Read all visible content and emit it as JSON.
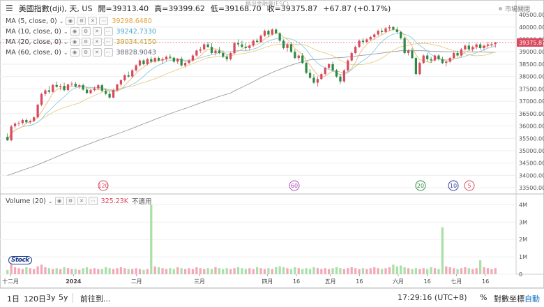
{
  "header": {
    "symbol": "美國指數(dji), 天, US",
    "open": "開=39313.40",
    "high": "高=39399.62",
    "low": "低=39168.70",
    "close": "收=39375.87",
    "change": "+67.87 (+0.17%)",
    "market_status": "市場關閉",
    "watermark": "稿出金融量(ESC)"
  },
  "indicators": [
    {
      "label": "MA (5, close, 0)",
      "value": "39298.6480",
      "color": "#e8a33a"
    },
    {
      "label": "MA (10, close, 0)",
      "value": "39242.7330",
      "color": "#4aa7c8"
    },
    {
      "label": "MA (20, close, 0)",
      "value": "39034.4150",
      "color": "#d8b84a"
    },
    {
      "label": "MA (60, close, 0)",
      "value": "38828.9043",
      "color": "#8f8f99"
    }
  ],
  "volume_legend": {
    "label": "Volume (20)",
    "value": "325.23K",
    "note": "不適用"
  },
  "price_axis": {
    "ticks": [
      "40500.00",
      "40000.00",
      "39500.00",
      "39000.00",
      "38500.00",
      "38000.00",
      "37500.00",
      "37000.00",
      "36500.00",
      "36000.00",
      "35500.00",
      "35000.00",
      "34500.00",
      "34000.00",
      "33500.00"
    ],
    "current": "39375.87"
  },
  "volume_axis": {
    "ticks": [
      "4M",
      "3M",
      "2M",
      "1M",
      "0"
    ]
  },
  "time_axis": {
    "labels": [
      "十二月",
      "2024",
      "二月",
      "三月",
      "四月",
      "16",
      "五月",
      "16",
      "六月",
      "16",
      "七月",
      "16"
    ]
  },
  "markers": [
    "120",
    "60",
    "20",
    "10",
    "5"
  ],
  "bottom_bar": {
    "ranges": [
      "1日",
      "120日",
      "3y",
      "5y"
    ],
    "goto": "前往到...",
    "time": "17:29:16 (UTC+8)",
    "percent": "%",
    "log": "對數坐標",
    "auto": "自動"
  },
  "colors": {
    "up": "#d94a5f",
    "down": "#2e8b45",
    "vol_up": "#f2a8b8",
    "vol_down": "#a8e0a8",
    "current_tag": "#d94a5f"
  },
  "chart_data": {
    "type": "candlestick",
    "ylim": [
      33250,
      40700
    ],
    "vol_ylim": [
      0,
      4300000
    ],
    "ma_values_last": {
      "ma5": 39298.648,
      "ma10": 39242.733,
      "ma20": 39034.415,
      "ma60": 38828.9043
    },
    "bars": [
      [
        35560,
        35700,
        35400,
        35420
      ],
      [
        35420,
        36050,
        35380,
        35980
      ],
      [
        35990,
        36150,
        35900,
        36100
      ],
      [
        36100,
        36200,
        36000,
        36120
      ],
      [
        36120,
        36300,
        36050,
        36240
      ],
      [
        36240,
        36300,
        36100,
        36150
      ],
      [
        36150,
        36260,
        36080,
        36200
      ],
      [
        36200,
        36400,
        36150,
        36350
      ],
      [
        36350,
        36900,
        36300,
        36860
      ],
      [
        36860,
        37350,
        36800,
        37290
      ],
      [
        37290,
        37500,
        37200,
        37440
      ],
      [
        37440,
        37620,
        37300,
        37380
      ],
      [
        37380,
        37700,
        37350,
        37660
      ],
      [
        37660,
        37800,
        37550,
        37580
      ],
      [
        37580,
        37700,
        37450,
        37620
      ],
      [
        37620,
        37750,
        37400,
        37450
      ],
      [
        37450,
        37700,
        37400,
        37680
      ],
      [
        37680,
        37800,
        37600,
        37710
      ],
      [
        37710,
        37780,
        37560,
        37590
      ],
      [
        37590,
        37700,
        37500,
        37650
      ],
      [
        37650,
        37720,
        37430,
        37470
      ],
      [
        37470,
        37560,
        37300,
        37330
      ],
      [
        37330,
        37500,
        37280,
        37450
      ],
      [
        37450,
        37600,
        37400,
        37520
      ],
      [
        37520,
        37700,
        37450,
        37650
      ],
      [
        37650,
        37710,
        37380,
        37420
      ],
      [
        37420,
        37500,
        37250,
        37300
      ],
      [
        37300,
        37400,
        37100,
        37150
      ],
      [
        37150,
        37500,
        37120,
        37450
      ],
      [
        37450,
        37700,
        37400,
        37680
      ],
      [
        37680,
        37900,
        37600,
        37850
      ],
      [
        37850,
        38100,
        37800,
        38050
      ],
      [
        38050,
        38200,
        37950,
        38000
      ],
      [
        38000,
        38300,
        37950,
        38250
      ],
      [
        38250,
        38500,
        38200,
        38450
      ],
      [
        38450,
        38700,
        38400,
        38650
      ],
      [
        38650,
        38700,
        38450,
        38500
      ],
      [
        38500,
        38750,
        38450,
        38700
      ],
      [
        38700,
        38800,
        38550,
        38600
      ],
      [
        38600,
        38800,
        38550,
        38750
      ],
      [
        38750,
        38800,
        38600,
        38650
      ],
      [
        38650,
        38780,
        38500,
        38700
      ],
      [
        38700,
        38850,
        38620,
        38800
      ],
      [
        38800,
        38900,
        38700,
        38760
      ],
      [
        38760,
        38800,
        38550,
        38600
      ],
      [
        38600,
        38750,
        38500,
        38720
      ],
      [
        38720,
        38800,
        38400,
        38450
      ],
      [
        38450,
        38600,
        38350,
        38550
      ],
      [
        38550,
        38700,
        38500,
        38650
      ],
      [
        38650,
        38900,
        38600,
        38850
      ],
      [
        38850,
        39100,
        38800,
        39050
      ],
      [
        39050,
        39200,
        38950,
        39100
      ],
      [
        39100,
        39350,
        39050,
        39300
      ],
      [
        39300,
        39400,
        39150,
        39200
      ],
      [
        39200,
        39350,
        38900,
        38950
      ],
      [
        38950,
        39100,
        38850,
        39050
      ],
      [
        39050,
        39200,
        38900,
        38950
      ],
      [
        38950,
        39050,
        38750,
        38800
      ],
      [
        38800,
        38900,
        38600,
        38700
      ],
      [
        38700,
        39000,
        38650,
        38950
      ],
      [
        38950,
        39400,
        38900,
        39350
      ],
      [
        39350,
        39500,
        39200,
        39300
      ],
      [
        39300,
        39450,
        39150,
        39200
      ],
      [
        39200,
        39350,
        39050,
        39150
      ],
      [
        39150,
        39300,
        39050,
        39250
      ],
      [
        39250,
        39500,
        39200,
        39450
      ],
      [
        39450,
        39550,
        39350,
        39400
      ],
      [
        39400,
        39700,
        39350,
        39650
      ],
      [
        39650,
        39900,
        39600,
        39850
      ],
      [
        39850,
        39900,
        39600,
        39700
      ],
      [
        39700,
        39950,
        39650,
        39900
      ],
      [
        39900,
        39950,
        39700,
        39750
      ],
      [
        39750,
        39800,
        39400,
        39450
      ],
      [
        39450,
        39500,
        39100,
        39150
      ],
      [
        39150,
        39350,
        39000,
        39300
      ],
      [
        39300,
        39400,
        38950,
        39000
      ],
      [
        39000,
        39100,
        38700,
        38750
      ],
      [
        38750,
        38900,
        38650,
        38850
      ],
      [
        38850,
        38950,
        38500,
        38550
      ],
      [
        38550,
        38600,
        38100,
        38150
      ],
      [
        38150,
        38300,
        37900,
        37950
      ],
      [
        37950,
        38100,
        37700,
        37750
      ],
      [
        37750,
        38000,
        37600,
        37900
      ],
      [
        37900,
        38150,
        37850,
        38100
      ],
      [
        38100,
        38400,
        38050,
        38350
      ],
      [
        38350,
        38550,
        38300,
        38500
      ],
      [
        38500,
        38600,
        38200,
        38250
      ],
      [
        38250,
        38300,
        37950,
        38000
      ],
      [
        38000,
        38100,
        37700,
        37800
      ],
      [
        37800,
        38300,
        37750,
        38250
      ],
      [
        38250,
        38700,
        38200,
        38650
      ],
      [
        38650,
        39000,
        38600,
        38950
      ],
      [
        38950,
        39250,
        38900,
        39200
      ],
      [
        39200,
        39500,
        39150,
        39450
      ],
      [
        39450,
        39550,
        39300,
        39400
      ],
      [
        39400,
        39550,
        39350,
        39500
      ],
      [
        39500,
        39650,
        39450,
        39600
      ],
      [
        39600,
        39750,
        39500,
        39700
      ],
      [
        39700,
        39900,
        39650,
        39850
      ],
      [
        39850,
        39950,
        39700,
        39800
      ],
      [
        39800,
        40000,
        39750,
        39950
      ],
      [
        39950,
        40080,
        39850,
        40000
      ],
      [
        40000,
        40050,
        39850,
        39900
      ],
      [
        39900,
        40000,
        39750,
        39800
      ],
      [
        39800,
        39850,
        39500,
        39550
      ],
      [
        39550,
        39600,
        38900,
        38950
      ],
      [
        38950,
        39100,
        38850,
        39050
      ],
      [
        39050,
        39150,
        38700,
        38750
      ],
      [
        38750,
        38800,
        38050,
        38100
      ],
      [
        38100,
        38600,
        38050,
        38550
      ],
      [
        38550,
        38900,
        38500,
        38850
      ],
      [
        38850,
        38950,
        38600,
        38700
      ],
      [
        38700,
        38800,
        38550,
        38650
      ],
      [
        38650,
        38900,
        38600,
        38850
      ],
      [
        38850,
        38900,
        38650,
        38700
      ],
      [
        38700,
        38800,
        38500,
        38550
      ],
      [
        38550,
        38650,
        38400,
        38600
      ],
      [
        38600,
        38800,
        38550,
        38750
      ],
      [
        38750,
        39000,
        38700,
        38950
      ],
      [
        38950,
        39050,
        38800,
        38850
      ],
      [
        38850,
        39150,
        38800,
        39100
      ],
      [
        39100,
        39300,
        39050,
        39250
      ],
      [
        39250,
        39400,
        39050,
        39100
      ],
      [
        39100,
        39250,
        39000,
        39200
      ],
      [
        39200,
        39350,
        39100,
        39300
      ],
      [
        39300,
        39350,
        39100,
        39150
      ],
      [
        39150,
        39300,
        39050,
        39250
      ],
      [
        39250,
        39400,
        39150,
        39300
      ],
      [
        39300,
        39400,
        39200,
        39320
      ],
      [
        39313,
        39400,
        39169,
        39376
      ]
    ],
    "volumes": [
      0.25,
      0.55,
      0.4,
      0.35,
      0.3,
      0.4,
      0.35,
      0.3,
      0.45,
      0.55,
      0.4,
      0.35,
      0.3,
      0.35,
      0.3,
      0.4,
      0.35,
      0.3,
      0.3,
      0.25,
      0.35,
      0.4,
      0.3,
      0.35,
      0.3,
      0.3,
      0.4,
      0.35,
      0.3,
      0.35,
      0.4,
      0.35,
      0.3,
      0.3,
      0.35,
      0.3,
      0.25,
      0.3,
      4.0,
      0.45,
      0.4,
      0.35,
      0.3,
      0.35,
      0.3,
      0.4,
      0.35,
      0.3,
      0.35,
      0.3,
      0.4,
      0.35,
      0.3,
      0.35,
      0.3,
      0.4,
      0.35,
      0.3,
      0.35,
      0.3,
      0.35,
      0.4,
      0.35,
      0.3,
      0.35,
      0.3,
      0.4,
      0.35,
      0.3,
      0.35,
      0.3,
      0.4,
      0.45,
      0.4,
      0.35,
      0.3,
      0.4,
      0.35,
      0.3,
      0.35,
      0.3,
      0.4,
      0.35,
      0.3,
      0.35,
      0.3,
      0.35,
      0.4,
      0.35,
      0.3,
      0.35,
      0.4,
      0.35,
      0.3,
      0.35,
      0.3,
      0.35,
      0.4,
      0.35,
      0.3,
      0.35,
      0.4,
      0.55,
      0.45,
      0.5,
      0.4,
      0.35,
      0.3,
      0.35,
      0.3,
      0.35,
      0.3,
      0.4,
      0.35,
      0.3,
      2.7,
      0.45,
      0.4,
      0.35,
      0.3,
      0.35,
      0.4,
      0.35,
      0.3,
      0.35,
      0.8,
      0.4,
      0.35,
      0.3,
      0.35
    ]
  }
}
